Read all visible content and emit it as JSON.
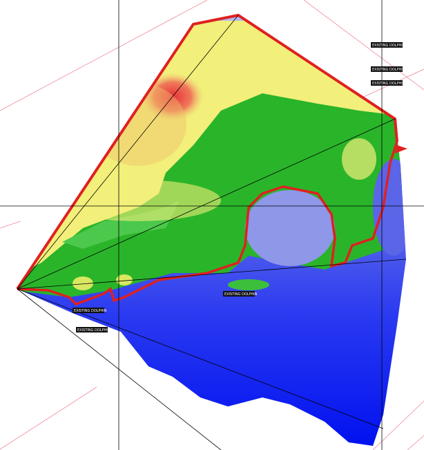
{
  "map": {
    "labels": [
      "EXISTING DOLPHIN",
      "EXISTING DOLPHIN",
      "EXISTING DOLPHIN",
      "EXISTING DOLPHIN",
      "EXISTING DOLPHIN",
      "EXISTING DOLPHIN"
    ]
  }
}
